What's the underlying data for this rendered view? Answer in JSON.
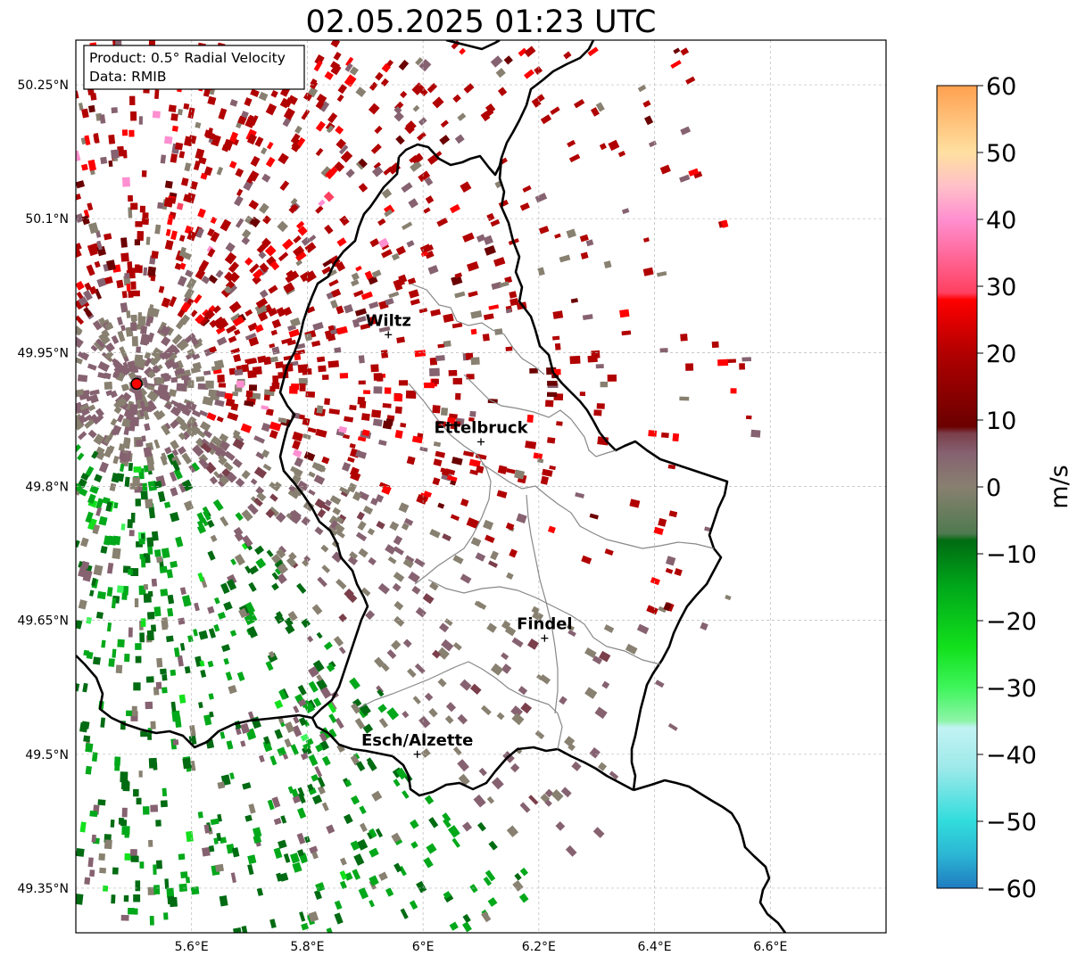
{
  "title": "02.05.2025 01:23 UTC",
  "info_box": {
    "product": "Product: 0.5° Radial Velocity",
    "source": "Data: RMIB"
  },
  "axes": {
    "lat_labels": [
      "50.25°N",
      "50.1°N",
      "49.95°N",
      "49.8°N",
      "49.65°N",
      "49.5°N",
      "49.35°N"
    ],
    "lat_values": [
      50.25,
      50.1,
      49.95,
      49.8,
      49.65,
      49.5,
      49.35
    ],
    "lon_labels": [
      "5.6°E",
      "5.8°E",
      "6°E",
      "6.2°E",
      "6.4°E",
      "6.6°E"
    ],
    "lon_values": [
      5.6,
      5.8,
      6.0,
      6.2,
      6.4,
      6.6
    ],
    "lon_range": [
      5.4,
      6.8
    ],
    "lat_range": [
      49.3,
      50.3
    ],
    "grid": true
  },
  "cities": [
    {
      "name": "Wiltz",
      "lon": 5.94,
      "lat": 49.97
    },
    {
      "name": "Ettelbruck",
      "lon": 6.1,
      "lat": 49.85
    },
    {
      "name": "Findel",
      "lon": 6.21,
      "lat": 49.63
    },
    {
      "name": "Esch/Alzette",
      "lon": 5.99,
      "lat": 49.5
    }
  ],
  "radar_site": {
    "lon": 5.505,
    "lat": 49.915,
    "color": "#ff0000"
  },
  "colorbar": {
    "label": "m/s",
    "min": -60,
    "max": 60,
    "tick_labels": [
      "60",
      "50",
      "40",
      "30",
      "20",
      "10",
      "0",
      "−10",
      "−20",
      "−30",
      "−40",
      "−50",
      "−60"
    ],
    "tick_values": [
      60,
      50,
      40,
      30,
      20,
      10,
      0,
      -10,
      -20,
      -30,
      -40,
      -50,
      -60
    ],
    "stops": [
      {
        "v": -60,
        "c": "#1f7bc0"
      },
      {
        "v": -55,
        "c": "#2cb6d4"
      },
      {
        "v": -50,
        "c": "#31dcdc"
      },
      {
        "v": -42,
        "c": "#9ee9ea"
      },
      {
        "v": -36,
        "c": "#c2f3f3"
      },
      {
        "v": -35,
        "c": "#8ef5a8"
      },
      {
        "v": -30,
        "c": "#3ef55b"
      },
      {
        "v": -24,
        "c": "#12e01c"
      },
      {
        "v": -15,
        "c": "#00a81a"
      },
      {
        "v": -8,
        "c": "#006b12"
      },
      {
        "v": -7,
        "c": "#4f7a4f"
      },
      {
        "v": 0,
        "c": "#888070"
      },
      {
        "v": 5,
        "c": "#866271"
      },
      {
        "v": 8,
        "c": "#7a3f4b"
      },
      {
        "v": 9,
        "c": "#6b0000"
      },
      {
        "v": 20,
        "c": "#b10000"
      },
      {
        "v": 28,
        "c": "#ff0000"
      },
      {
        "v": 29,
        "c": "#ff4060"
      },
      {
        "v": 40,
        "c": "#ff8fd0"
      },
      {
        "v": 45,
        "c": "#ffc0c8"
      },
      {
        "v": 50,
        "c": "#ffe0a0"
      },
      {
        "v": 60,
        "c": "#ffa050"
      }
    ]
  },
  "boundary_color": "#000000",
  "district_color": "#888888"
}
